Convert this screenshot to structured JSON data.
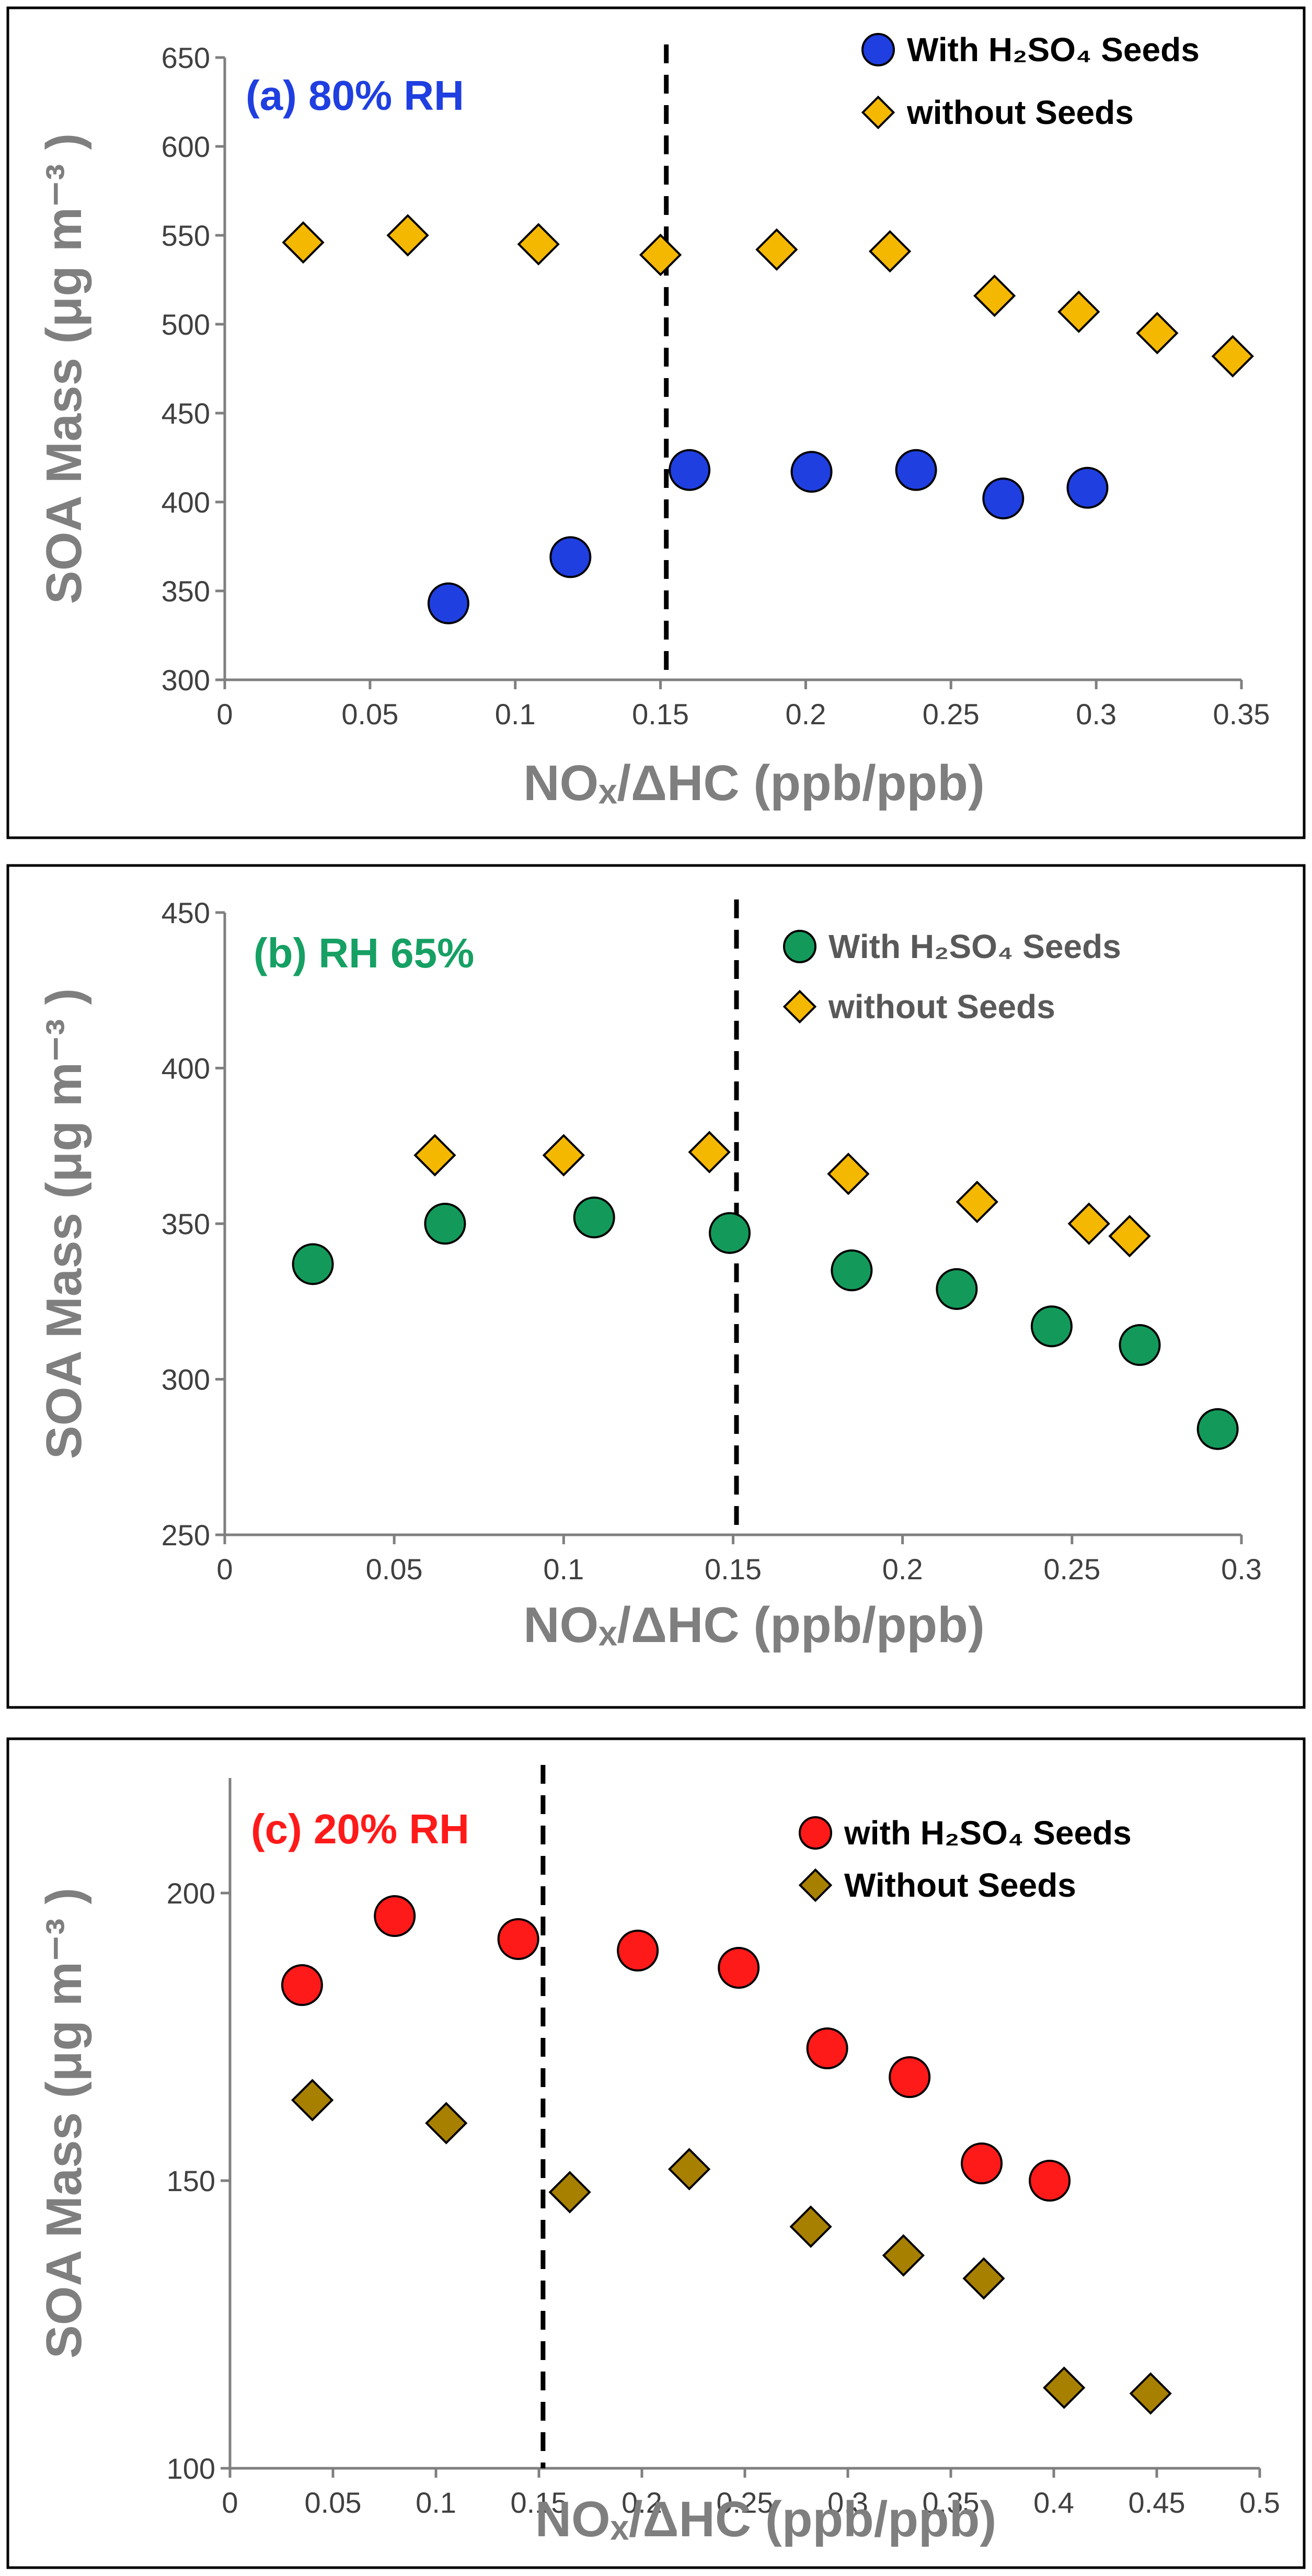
{
  "chart_data": [
    {
      "type": "scatter",
      "panel_label": "(a) 80% RH",
      "label_color": "#1f3fe0",
      "ylabel": "SOA Mass (μg m⁻³ )",
      "xlabel": "NOₓ/ΔHC    (ppb/ppb)",
      "xlim": [
        0,
        0.35
      ],
      "ylim": [
        300,
        650
      ],
      "x_ticks": [
        "0",
        "0.05",
        "0.1",
        "0.15",
        "0.2",
        "0.25",
        "0.3",
        "0.35"
      ],
      "y_ticks": [
        "300",
        "350",
        "400",
        "450",
        "500",
        "550",
        "600",
        "650"
      ],
      "ref_line_x": 0.152,
      "legend_text_color": "#000000",
      "series": [
        {
          "name": "With H₂SO₄ Seeds",
          "marker": "circle",
          "color": "#1f3fe0",
          "points": [
            [
              0.077,
              343
            ],
            [
              0.119,
              369
            ],
            [
              0.16,
              418
            ],
            [
              0.202,
              417
            ],
            [
              0.238,
              418
            ],
            [
              0.268,
              402
            ],
            [
              0.297,
              408
            ]
          ]
        },
        {
          "name": "without Seeds",
          "marker": "diamond",
          "color": "#f5b800",
          "points": [
            [
              0.027,
              546
            ],
            [
              0.063,
              550
            ],
            [
              0.108,
              545
            ],
            [
              0.15,
              539
            ],
            [
              0.19,
              542
            ],
            [
              0.229,
              541
            ],
            [
              0.265,
              516
            ],
            [
              0.294,
              507
            ],
            [
              0.321,
              495
            ],
            [
              0.347,
              482
            ]
          ]
        }
      ]
    },
    {
      "type": "scatter",
      "panel_label": "(b) RH 65%",
      "label_color": "#16a064",
      "ylabel": "SOA Mass (μg m⁻³ )",
      "xlabel": "NOₓ/ΔHC (ppb/ppb)",
      "xlim": [
        0,
        0.3
      ],
      "ylim": [
        250,
        450
      ],
      "x_ticks": [
        "0",
        "0.05",
        "0.1",
        "0.15",
        "0.2",
        "0.25",
        "0.3"
      ],
      "y_ticks": [
        "250",
        "300",
        "350",
        "400",
        "450"
      ],
      "ref_line_x": 0.151,
      "legend_text_color": "#595959",
      "series": [
        {
          "name": "With H₂SO₄ Seeds",
          "marker": "circle",
          "color": "#139a5a",
          "points": [
            [
              0.026,
              337
            ],
            [
              0.065,
              350
            ],
            [
              0.109,
              352
            ],
            [
              0.149,
              347
            ],
            [
              0.185,
              335
            ],
            [
              0.216,
              329
            ],
            [
              0.244,
              317
            ],
            [
              0.27,
              311
            ],
            [
              0.293,
              284
            ]
          ]
        },
        {
          "name": "without Seeds",
          "marker": "diamond",
          "color": "#f5b800",
          "points": [
            [
              0.062,
              372
            ],
            [
              0.1,
              372
            ],
            [
              0.143,
              373
            ],
            [
              0.184,
              366
            ],
            [
              0.222,
              357
            ],
            [
              0.255,
              350
            ],
            [
              0.267,
              346
            ]
          ]
        }
      ]
    },
    {
      "type": "scatter",
      "panel_label": "(c) 20% RH",
      "label_color": "#ff1a1a",
      "ylabel": "SOA Mass (μg m⁻³ )",
      "xlabel": "NOₓ/ΔHC  (ppb/ppb)",
      "xlim": [
        0,
        0.5
      ],
      "ylim": [
        100,
        220
      ],
      "x_ticks": [
        "0",
        "0.05",
        "0.1",
        "0.15",
        "0.2",
        "0.25",
        "0.3",
        "0.35",
        "0.4",
        "0.45",
        "0.5"
      ],
      "y_ticks": [
        "100",
        "150",
        "200"
      ],
      "y_tick_values": [
        100,
        150,
        200
      ],
      "ref_line_x": 0.152,
      "legend_text_color": "#000000",
      "series": [
        {
          "name": "with H₂SO₄ Seeds",
          "marker": "circle",
          "color": "#ff1a1a",
          "points": [
            [
              0.035,
              184
            ],
            [
              0.08,
              196
            ],
            [
              0.14,
              192
            ],
            [
              0.198,
              190
            ],
            [
              0.247,
              187
            ],
            [
              0.29,
              173
            ],
            [
              0.33,
              168
            ],
            [
              0.365,
              153
            ],
            [
              0.398,
              150
            ]
          ]
        },
        {
          "name": "Without Seeds",
          "marker": "diamond",
          "color": "#a88000",
          "points": [
            [
              0.04,
              164
            ],
            [
              0.105,
              160
            ],
            [
              0.165,
              148
            ],
            [
              0.223,
              152
            ],
            [
              0.282,
              142
            ],
            [
              0.327,
              137
            ],
            [
              0.366,
              133
            ],
            [
              0.405,
              114
            ],
            [
              0.447,
              113
            ]
          ]
        }
      ]
    }
  ]
}
